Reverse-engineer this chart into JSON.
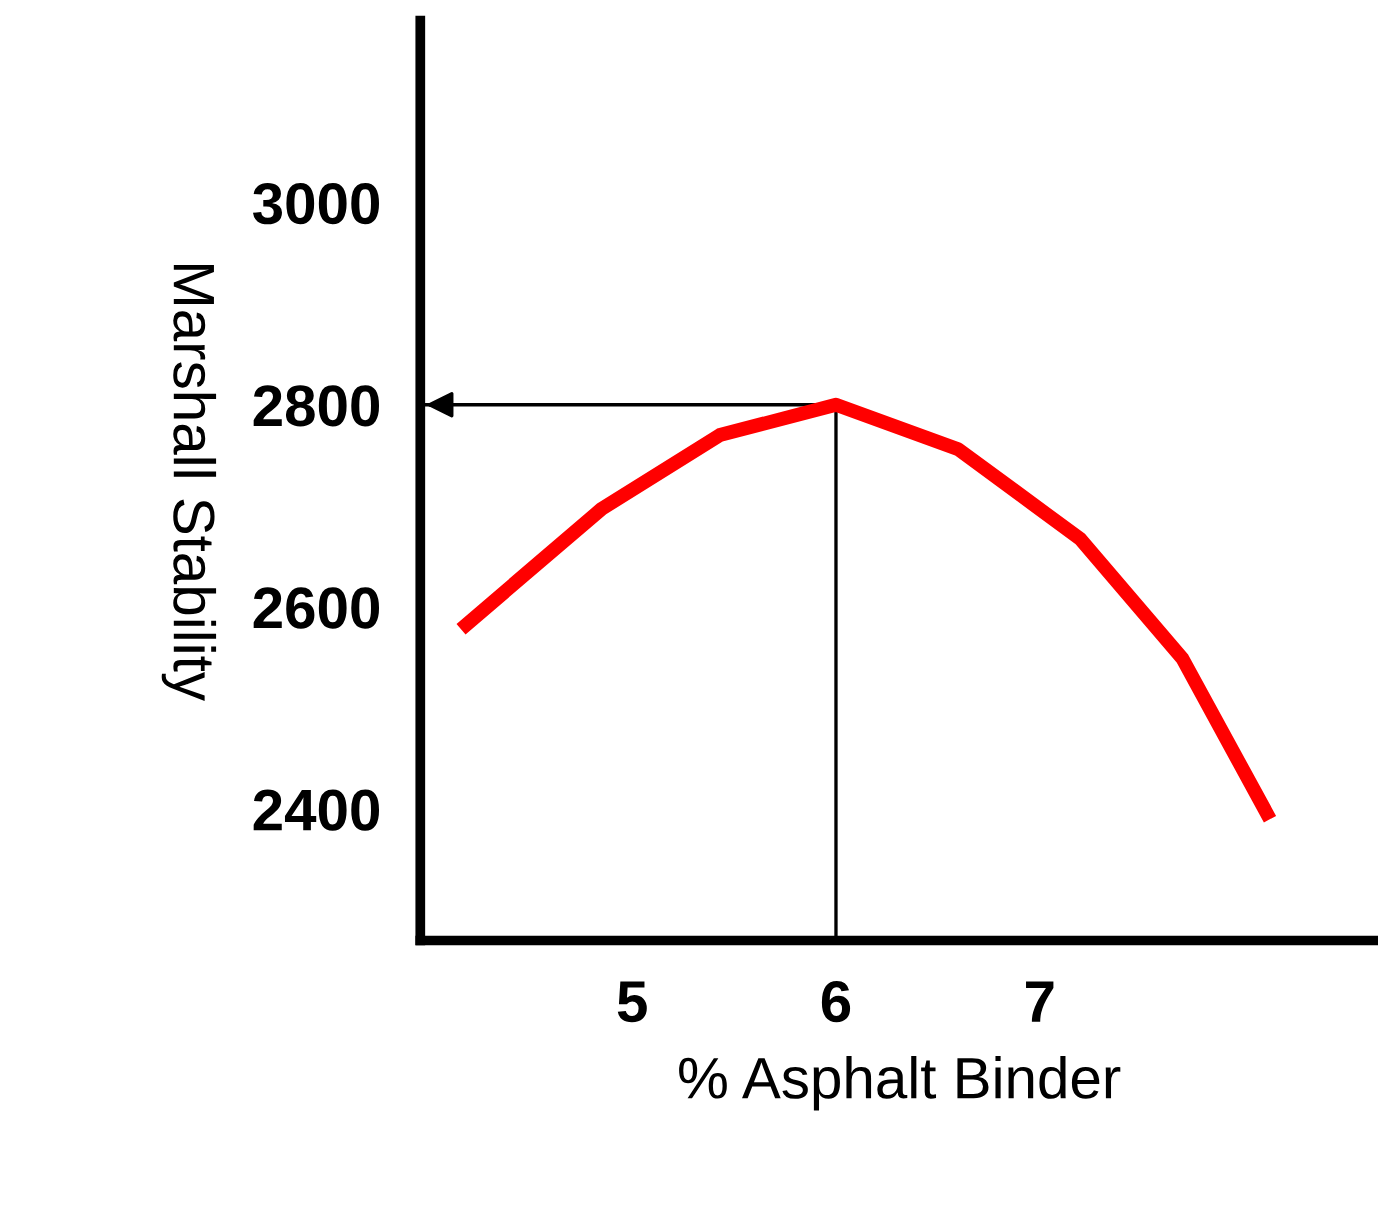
{
  "chart_data": {
    "type": "line",
    "xlabel": "% Asphalt Binder",
    "ylabel": "Marshall Stability",
    "x": [
      4.16,
      4.85,
      5.43,
      6.0,
      6.6,
      7.2,
      7.7,
      8.13
    ],
    "series": [
      {
        "color": "#ff0000",
        "values": [
          2578,
          2697,
          2770,
          2800,
          2756,
          2667,
          2549,
          2390
        ]
      }
    ],
    "xlim": [
      3.96,
      8.66
    ],
    "ylim": [
      2270,
      3180
    ],
    "xticks": [
      5,
      6,
      7
    ],
    "yticks": [
      2400,
      2600,
      2800,
      3000
    ],
    "ref_lines": [
      {
        "axis": "x",
        "value": 6,
        "color": "#000000"
      },
      {
        "axis": "y",
        "value": 2800,
        "color": "#000000"
      }
    ],
    "grid": false,
    "legend": false,
    "marker": "none",
    "line_style": "solid"
  }
}
